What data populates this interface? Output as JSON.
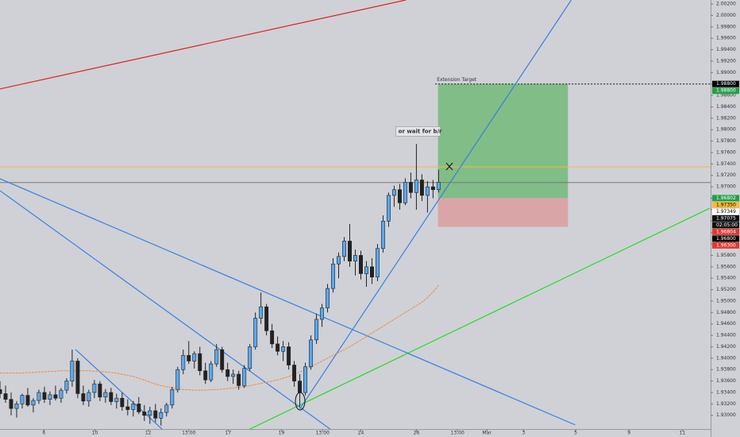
{
  "chart_data": {
    "type": "candlestick",
    "ylim": [
      1.9276,
      2.0027
    ],
    "xlim": [
      0,
      128
    ],
    "yticks": [
      {
        "value": 1.93,
        "label": "1.93000"
      },
      {
        "value": 1.932,
        "label": "1.93200"
      },
      {
        "value": 1.934,
        "label": "1.93400"
      },
      {
        "value": 1.936,
        "label": "1.93600"
      },
      {
        "value": 1.938,
        "label": "1.93800"
      },
      {
        "value": 1.94,
        "label": "1.94000"
      },
      {
        "value": 1.942,
        "label": "1.94200"
      },
      {
        "value": 1.944,
        "label": "1.94400"
      },
      {
        "value": 1.946,
        "label": "1.94600"
      },
      {
        "value": 1.948,
        "label": "1.94800"
      },
      {
        "value": 1.95,
        "label": "1.95000"
      },
      {
        "value": 1.952,
        "label": "1.95200"
      },
      {
        "value": 1.954,
        "label": "1.95400"
      },
      {
        "value": 1.956,
        "label": "1.95600"
      },
      {
        "value": 1.958,
        "label": "1.95800"
      },
      {
        "value": 1.96,
        "label": "1.96000"
      },
      {
        "value": 1.962,
        "label": "1.96200"
      },
      {
        "value": 1.964,
        "label": "1.96400"
      },
      {
        "value": 1.966,
        "label": "1.96600"
      },
      {
        "value": 1.968,
        "label": "1.96800"
      },
      {
        "value": 1.97,
        "label": "1.97000"
      },
      {
        "value": 1.972,
        "label": "1.97200"
      },
      {
        "value": 1.974,
        "label": "1.97400"
      },
      {
        "value": 1.976,
        "label": "1.97600"
      },
      {
        "value": 1.978,
        "label": "1.97800"
      },
      {
        "value": 1.98,
        "label": "1.98000"
      },
      {
        "value": 1.982,
        "label": "1.98200"
      },
      {
        "value": 1.984,
        "label": "1.98400"
      },
      {
        "value": 1.986,
        "label": "1.98600"
      },
      {
        "value": 1.988,
        "label": "1.98800"
      },
      {
        "value": 1.99,
        "label": "1.99000"
      },
      {
        "value": 1.992,
        "label": "1.99200"
      },
      {
        "value": 1.994,
        "label": "1.99400"
      },
      {
        "value": 1.996,
        "label": "1.99600"
      },
      {
        "value": 1.998,
        "label": "1.99800"
      },
      {
        "value": 2.0,
        "label": "2.00000"
      },
      {
        "value": 2.002,
        "label": "2.00200"
      }
    ],
    "xticks": [
      {
        "value": 7.9,
        "label": "6"
      },
      {
        "value": 17.1,
        "label": "10"
      },
      {
        "value": 26.7,
        "label": "12"
      },
      {
        "value": 34,
        "label": "13:00"
      },
      {
        "value": 41.1,
        "label": "17"
      },
      {
        "value": 50.7,
        "label": "19"
      },
      {
        "value": 58.1,
        "label": "13:00"
      },
      {
        "value": 65,
        "label": "24"
      },
      {
        "value": 75,
        "label": "26"
      },
      {
        "value": 82.4,
        "label": "13:00"
      },
      {
        "value": 87.7,
        "label": "Mar"
      },
      {
        "value": 94.3,
        "label": "3"
      },
      {
        "value": 103.7,
        "label": "5"
      },
      {
        "value": 113.3,
        "label": "9"
      },
      {
        "value": 122.9,
        "label": "11"
      }
    ],
    "up_color": "#5aa9f0",
    "down_color": "#222222",
    "candles": [
      [
        1.9345,
        1.936,
        1.933,
        1.9338
      ],
      [
        1.9338,
        1.9352,
        1.9322,
        1.9328
      ],
      [
        1.9328,
        1.934,
        1.93,
        1.9312
      ],
      [
        1.9312,
        1.9325,
        1.9296,
        1.932
      ],
      [
        1.932,
        1.9338,
        1.9312,
        1.9335
      ],
      [
        1.9335,
        1.9348,
        1.9315,
        1.9318
      ],
      [
        1.9318,
        1.933,
        1.9305,
        1.9326
      ],
      [
        1.9326,
        1.9345,
        1.932,
        1.934
      ],
      [
        1.934,
        1.935,
        1.9322,
        1.9328
      ],
      [
        1.9328,
        1.9342,
        1.9318,
        1.9336
      ],
      [
        1.9336,
        1.9352,
        1.9326,
        1.933
      ],
      [
        1.933,
        1.9348,
        1.9322,
        1.9344
      ],
      [
        1.9344,
        1.9365,
        1.9338,
        1.936
      ],
      [
        1.936,
        1.9415,
        1.935,
        1.9395
      ],
      [
        1.9395,
        1.94,
        1.933,
        1.9338
      ],
      [
        1.9338,
        1.9352,
        1.9318,
        1.9325
      ],
      [
        1.9325,
        1.9345,
        1.9315,
        1.934
      ],
      [
        1.934,
        1.9362,
        1.933,
        1.9355
      ],
      [
        1.9355,
        1.936,
        1.9325,
        1.9332
      ],
      [
        1.9332,
        1.9346,
        1.9322,
        1.934
      ],
      [
        1.934,
        1.9348,
        1.9318,
        1.9324
      ],
      [
        1.9324,
        1.9338,
        1.9312,
        1.933
      ],
      [
        1.933,
        1.934,
        1.9308,
        1.9315
      ],
      [
        1.9315,
        1.9328,
        1.93,
        1.931
      ],
      [
        1.931,
        1.9325,
        1.9298,
        1.932
      ],
      [
        1.932,
        1.9332,
        1.9302,
        1.9306
      ],
      [
        1.9306,
        1.9318,
        1.929,
        1.93
      ],
      [
        1.93,
        1.9315,
        1.9285,
        1.9308
      ],
      [
        1.9308,
        1.932,
        1.9288,
        1.9295
      ],
      [
        1.9295,
        1.9312,
        1.9282,
        1.9305
      ],
      [
        1.9305,
        1.9322,
        1.9298,
        1.9318
      ],
      [
        1.9318,
        1.935,
        1.9312,
        1.9345
      ],
      [
        1.9345,
        1.9385,
        1.934,
        1.938
      ],
      [
        1.938,
        1.9415,
        1.9372,
        1.9405
      ],
      [
        1.9405,
        1.943,
        1.939,
        1.9395
      ],
      [
        1.9395,
        1.9412,
        1.9382,
        1.9408
      ],
      [
        1.9408,
        1.942,
        1.937,
        1.9378
      ],
      [
        1.9378,
        1.9392,
        1.9355,
        1.9362
      ],
      [
        1.9362,
        1.9395,
        1.9358,
        1.939
      ],
      [
        1.939,
        1.9425,
        1.9385,
        1.9415
      ],
      [
        1.9415,
        1.942,
        1.9375,
        1.938
      ],
      [
        1.938,
        1.9392,
        1.936,
        1.9368
      ],
      [
        1.9368,
        1.938,
        1.9355,
        1.9372
      ],
      [
        1.9372,
        1.9378,
        1.9345,
        1.9352
      ],
      [
        1.9352,
        1.9388,
        1.9348,
        1.9382
      ],
      [
        1.9382,
        1.9425,
        1.9378,
        1.942
      ],
      [
        1.942,
        1.948,
        1.9415,
        1.947
      ],
      [
        1.947,
        1.9515,
        1.946,
        1.949
      ],
      [
        1.949,
        1.9495,
        1.944,
        1.9448
      ],
      [
        1.9448,
        1.946,
        1.9418,
        1.9425
      ],
      [
        1.9425,
        1.9438,
        1.9405,
        1.9412
      ],
      [
        1.9412,
        1.943,
        1.9395,
        1.942
      ],
      [
        1.942,
        1.9428,
        1.938,
        1.9388
      ],
      [
        1.9388,
        1.9395,
        1.935,
        1.936
      ],
      [
        1.936,
        1.9372,
        1.9315,
        1.934
      ],
      [
        1.934,
        1.9392,
        1.9335,
        1.9385
      ],
      [
        1.9385,
        1.944,
        1.938,
        1.9432
      ],
      [
        1.9432,
        1.9478,
        1.9425,
        1.9468
      ],
      [
        1.9468,
        1.9495,
        1.9455,
        1.9488
      ],
      [
        1.9488,
        1.953,
        1.948,
        1.9522
      ],
      [
        1.9522,
        1.9575,
        1.9515,
        1.9565
      ],
      [
        1.9565,
        1.9585,
        1.954,
        1.9578
      ],
      [
        1.9578,
        1.9612,
        1.957,
        1.9605
      ],
      [
        1.9605,
        1.9635,
        1.956,
        1.957
      ],
      [
        1.957,
        1.959,
        1.9545,
        1.958
      ],
      [
        1.958,
        1.9588,
        1.9538,
        1.9548
      ],
      [
        1.9548,
        1.957,
        1.9525,
        1.956
      ],
      [
        1.956,
        1.9575,
        1.953,
        1.9542
      ],
      [
        1.9542,
        1.96,
        1.9535,
        1.9592
      ],
      [
        1.9592,
        1.965,
        1.9585,
        1.964
      ],
      [
        1.964,
        1.969,
        1.963,
        1.9685
      ],
      [
        1.9685,
        1.9702,
        1.9665,
        1.9695
      ],
      [
        1.9695,
        1.9705,
        1.966,
        1.9672
      ],
      [
        1.9672,
        1.9715,
        1.9668,
        1.9708
      ],
      [
        1.9708,
        1.9725,
        1.968,
        1.969
      ],
      [
        1.969,
        1.9775,
        1.966,
        1.9712
      ],
      [
        1.9712,
        1.9722,
        1.9675,
        1.9685
      ],
      [
        1.9685,
        1.971,
        1.9655,
        1.97
      ],
      [
        1.97,
        1.9712,
        1.968,
        1.9695
      ],
      [
        1.9695,
        1.973,
        1.969,
        1.9708
      ]
    ],
    "ma_color": "#f08a4b",
    "ma": [
      1.9374,
      1.9374,
      1.9374,
      1.9374,
      1.9374,
      1.9375,
      1.9375,
      1.9376,
      1.9376,
      1.9377,
      1.9377,
      1.9378,
      1.9378,
      1.9378,
      1.9378,
      1.9378,
      1.9378,
      1.9377,
      1.9377,
      1.9376,
      1.9375,
      1.9374,
      1.9372,
      1.937,
      1.9368,
      1.9365,
      1.9362,
      1.9358,
      1.9355,
      1.9352,
      1.935,
      1.9348,
      1.9346,
      1.9345,
      1.9345,
      1.9344,
      1.9344,
      1.9344,
      1.9345,
      1.9345,
      1.9346,
      1.9347,
      1.9348,
      1.9349,
      1.935,
      1.9352,
      1.9354,
      1.9356,
      1.9358,
      1.936,
      1.9362,
      1.9365,
      1.9368,
      1.9372,
      1.9376,
      1.938,
      1.9385,
      1.939,
      1.9395,
      1.94,
      1.9405,
      1.941,
      1.9415,
      1.942,
      1.9426,
      1.9432,
      1.9438,
      1.9444,
      1.945,
      1.9456,
      1.9462,
      1.9468,
      1.9474,
      1.948,
      1.9486,
      1.9492,
      1.9498,
      1.9506,
      1.9516,
      1.9528
    ],
    "trendlines": [
      {
        "color": "#e0201f",
        "points": [
          [
            0,
            1.98713
          ],
          [
            73.1,
            2.0027
          ]
        ]
      },
      {
        "color": "#22dd22",
        "points": [
          [
            42.1,
            1.92624
          ],
          [
            127.9,
            1.96628
          ]
        ]
      },
      {
        "color": "#3a7fe0",
        "points": [
          [
            54,
            1.93111
          ],
          [
            102.9,
            2.0027
          ]
        ]
      },
      {
        "color": "#3a7fe0",
        "points": [
          [
            0,
            1.97142
          ],
          [
            103.6,
            1.92833
          ]
        ]
      },
      {
        "color": "#3a7fe0",
        "points": [
          [
            0,
            1.96933
          ],
          [
            61.4,
            1.92624
          ]
        ]
      },
      {
        "color": "#3a7fe0",
        "points": [
          [
            13.6,
            1.94153
          ],
          [
            30.7,
            1.92624
          ]
        ]
      }
    ],
    "hlines": [
      {
        "value": 1.9735,
        "color": "#f5b942"
      },
      {
        "value": 1.97075,
        "color": "#777777"
      }
    ],
    "position": {
      "x": [
        78.9,
        102.3
      ],
      "entry": 1.96804,
      "target": 1.988,
      "stop": 1.963
    },
    "target_line": {
      "x": 78.4,
      "value": 1.988,
      "label": "Extension Target"
    },
    "note": {
      "x": 71.6,
      "value": 1.9797,
      "text": "or wait for b/r"
    },
    "price_tags": [
      {
        "value": 1.988,
        "label": "1.98800",
        "bg": "#000000",
        "fg": "#ffffff"
      },
      {
        "value": 1.988,
        "label": "1.98800",
        "bg": "#22a046",
        "fg": "#ffffff"
      },
      {
        "value": 1.96802,
        "label": "1.96802",
        "bg": "#22a046",
        "fg": "#ffffff"
      },
      {
        "value": 1.9735,
        "label": "1.97350",
        "bg": "#f5b942",
        "fg": "#000000"
      },
      {
        "value": 1.97349,
        "label": "1.97349",
        "bg": "#ffffff",
        "fg": "#000000"
      },
      {
        "value": 1.97075,
        "label": "1.97075",
        "bg": "#111111",
        "fg": "#ffffff"
      },
      {
        "value": 1.96804,
        "label": "1.96804",
        "bg": "#e0392f",
        "fg": "#ffffff"
      },
      {
        "value": 1.968,
        "label": "1.96800",
        "bg": "#000000",
        "fg": "#ffffff"
      },
      {
        "value": 1.963,
        "label": "1.96300",
        "bg": "#e0392f",
        "fg": "#ffffff"
      }
    ],
    "countdown": "02:05:00"
  }
}
